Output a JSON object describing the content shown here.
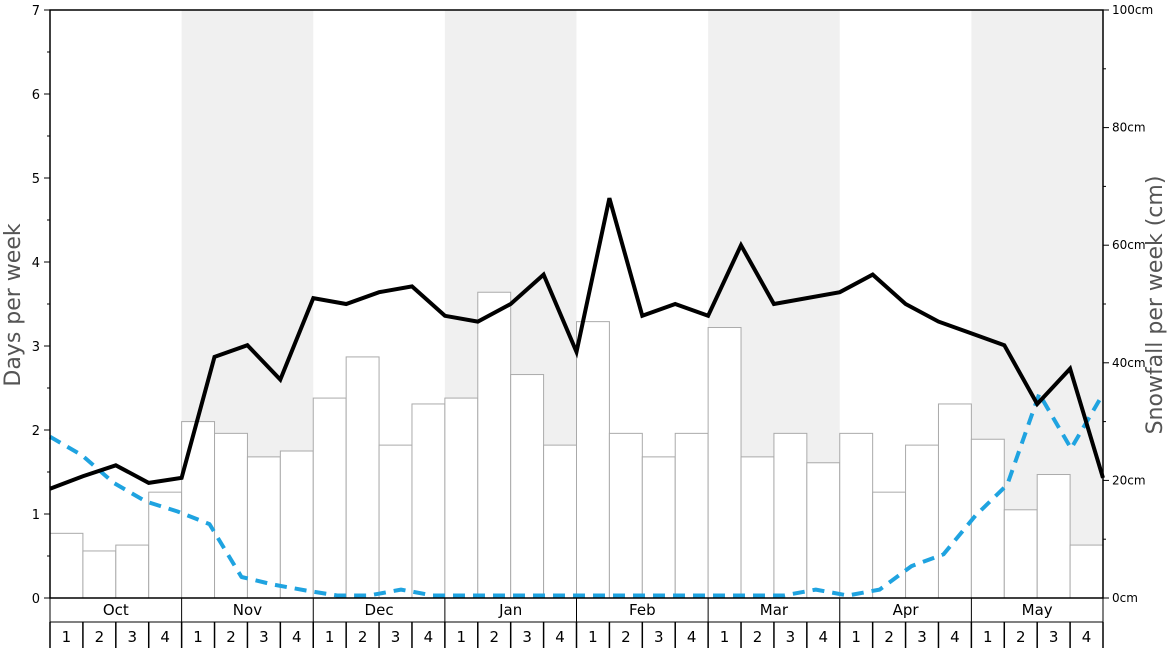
{
  "chart_data": {
    "type": "bar",
    "left_axis": {
      "title": "Days per week",
      "ticks": [
        "0",
        "1",
        "2",
        "3",
        "4",
        "5",
        "6",
        "7"
      ],
      "range": [
        0,
        7
      ]
    },
    "right_axis": {
      "title": "Snowfall per week (cm)",
      "ticks": [
        "0cm",
        "20cm",
        "40cm",
        "60cm",
        "80cm",
        "100cm"
      ],
      "range": [
        0,
        100
      ]
    },
    "months": [
      "Oct",
      "Nov",
      "Dec",
      "Jan",
      "Feb",
      "Mar",
      "Apr",
      "May"
    ],
    "weeks": [
      "1",
      "2",
      "3",
      "4"
    ],
    "shaded_months": [
      "Nov",
      "Jan",
      "Mar",
      "May"
    ],
    "snowfall_cm": [
      11,
      8,
      9,
      18,
      30,
      28,
      24,
      25,
      34,
      41,
      26,
      33,
      34,
      52,
      38,
      26,
      47,
      28,
      24,
      28,
      46,
      24,
      28,
      23,
      28,
      18,
      26,
      33,
      27,
      15,
      21,
      9
    ],
    "snow_days_solid": [
      1.3,
      1.45,
      1.58,
      1.37,
      1.43,
      2.87,
      3.01,
      2.6,
      3.57,
      3.5,
      3.64,
      3.71,
      3.36,
      3.29,
      3.5,
      3.85,
      2.93,
      4.76,
      3.36,
      3.5,
      3.36,
      4.2,
      3.5,
      3.57,
      3.64,
      3.85,
      3.5,
      3.29,
      3.15,
      3.01,
      2.31,
      2.73,
      1.43
    ],
    "snow_days_dashed": [
      1.92,
      1.7,
      1.37,
      1.15,
      1.03,
      0.88,
      0.25,
      0.16,
      0.09,
      0.03,
      0.03,
      0.1,
      0.03,
      0.03,
      0.03,
      0.03,
      0.03,
      0.03,
      0.03,
      0.03,
      0.03,
      0.03,
      0.03,
      0.03,
      0.1,
      0.03,
      0.1,
      0.38,
      0.52,
      0.98,
      1.35,
      2.43,
      1.78,
      2.43
    ],
    "colors": {
      "solid_line": "#000000",
      "dashed_line": "#1fa3e0",
      "bar_fill": "#ffffff",
      "bar_stroke": "#aaaaaa",
      "shade": "#f0f0f0"
    }
  }
}
